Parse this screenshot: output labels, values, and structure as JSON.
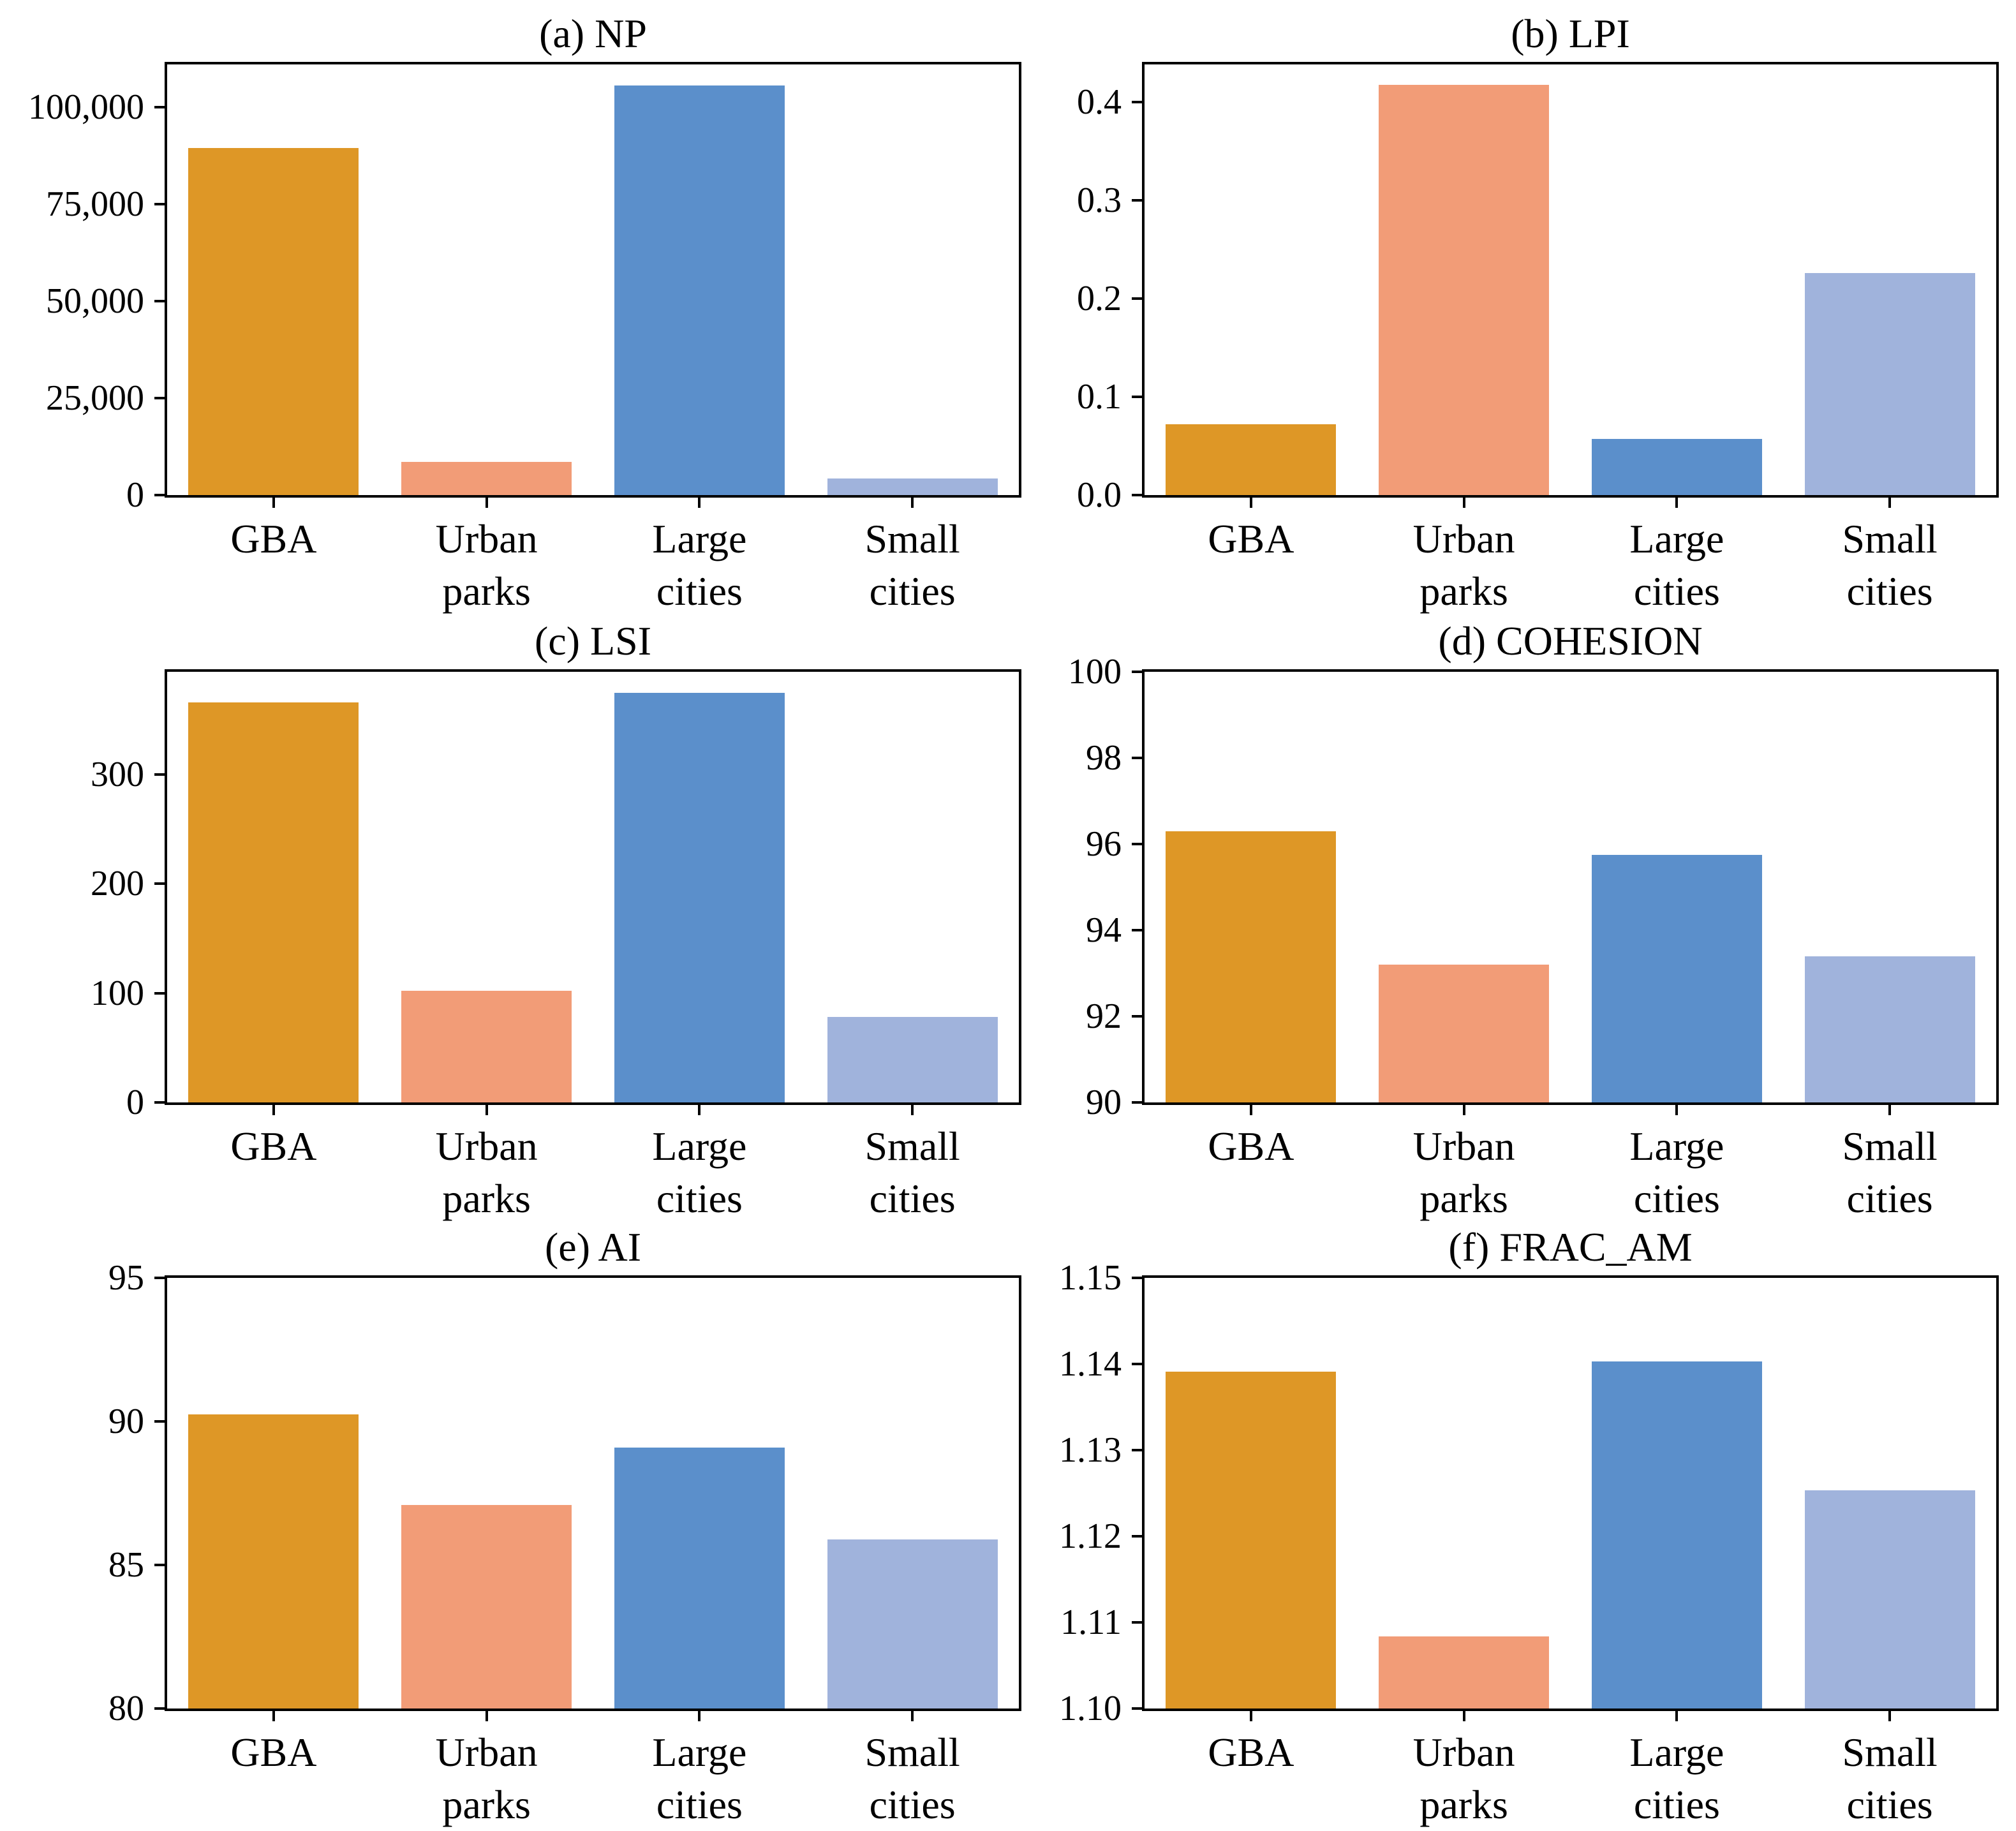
{
  "figure": {
    "rows": 3,
    "cols": 2,
    "background": "#ffffff",
    "text_color": "#000000",
    "axis_color": "#000000"
  },
  "palette": {
    "gba": "#DE9726",
    "urban_parks": "#F29C77",
    "large_cities": "#5B8FCB",
    "small_cities": "#A0B3DC"
  },
  "palette_order": [
    "#DE9726",
    "#F29C77",
    "#5B8FCB",
    "#A0B3DC"
  ],
  "category_slugs": [
    "gba",
    "urban-parks",
    "large-cities",
    "small-cities"
  ],
  "chart_data": [
    {
      "id": "a",
      "slug": "np",
      "type": "bar",
      "title": "(a) NP",
      "categories": [
        "GBA",
        "Urban\nparks",
        "Large\ncities",
        "Small\ncities"
      ],
      "values": [
        89500,
        8500,
        105500,
        4200
      ],
      "ylim": [
        0,
        111000
      ],
      "yticks": [
        {
          "value": 0,
          "label": "0"
        },
        {
          "value": 25000,
          "label": "25,000"
        },
        {
          "value": 50000,
          "label": "50,000"
        },
        {
          "value": 75000,
          "label": "75,000"
        },
        {
          "value": 100000,
          "label": "100,000"
        }
      ],
      "xlabel": "",
      "ylabel": "",
      "grid": false,
      "legend": null
    },
    {
      "id": "b",
      "slug": "lpi",
      "type": "bar",
      "title": "(b) LPI",
      "categories": [
        "GBA",
        "Urban\nparks",
        "Large\ncities",
        "Small\ncities"
      ],
      "values": [
        0.072,
        0.417,
        0.057,
        0.226
      ],
      "ylim": [
        0,
        0.438
      ],
      "yticks": [
        {
          "value": 0,
          "label": "0.0"
        },
        {
          "value": 0.1,
          "label": "0.1"
        },
        {
          "value": 0.2,
          "label": "0.2"
        },
        {
          "value": 0.3,
          "label": "0.3"
        },
        {
          "value": 0.4,
          "label": "0.4"
        }
      ],
      "xlabel": "",
      "ylabel": "",
      "grid": false,
      "legend": null
    },
    {
      "id": "c",
      "slug": "lsi",
      "type": "bar",
      "title": "(c) LSI",
      "categories": [
        "GBA",
        "Urban\nparks",
        "Large\ncities",
        "Small\ncities"
      ],
      "values": [
        366,
        102,
        375,
        78
      ],
      "ylim": [
        0,
        394
      ],
      "yticks": [
        {
          "value": 0,
          "label": "0"
        },
        {
          "value": 100,
          "label": "100"
        },
        {
          "value": 200,
          "label": "200"
        },
        {
          "value": 300,
          "label": "300"
        }
      ],
      "xlabel": "",
      "ylabel": "",
      "grid": false,
      "legend": null
    },
    {
      "id": "d",
      "slug": "cohesion",
      "type": "bar",
      "title": "(d) COHESION",
      "categories": [
        "GBA",
        "Urban\nparks",
        "Large\ncities",
        "Small\ncities"
      ],
      "values": [
        96.3,
        93.2,
        95.75,
        93.4
      ],
      "ylim": [
        90,
        100
      ],
      "yticks": [
        {
          "value": 90,
          "label": "90"
        },
        {
          "value": 92,
          "label": "92"
        },
        {
          "value": 94,
          "label": "94"
        },
        {
          "value": 96,
          "label": "96"
        },
        {
          "value": 98,
          "label": "98"
        },
        {
          "value": 100,
          "label": "100"
        }
      ],
      "xlabel": "",
      "ylabel": "",
      "grid": false,
      "legend": null
    },
    {
      "id": "e",
      "slug": "ai",
      "type": "bar",
      "title": "(e) AI",
      "categories": [
        "GBA",
        "Urban\nparks",
        "Large\ncities",
        "Small\ncities"
      ],
      "values": [
        90.25,
        87.1,
        89.1,
        85.9
      ],
      "ylim": [
        80,
        95
      ],
      "yticks": [
        {
          "value": 80,
          "label": "80"
        },
        {
          "value": 85,
          "label": "85"
        },
        {
          "value": 90,
          "label": "90"
        },
        {
          "value": 95,
          "label": "95"
        }
      ],
      "xlabel": "",
      "ylabel": "",
      "grid": false,
      "legend": null
    },
    {
      "id": "f",
      "slug": "frac-am",
      "type": "bar",
      "title": "(f) FRAC_AM",
      "categories": [
        "GBA",
        "Urban\nparks",
        "Large\ncities",
        "Small\ncities"
      ],
      "values": [
        1.1391,
        1.1084,
        1.1403,
        1.1253
      ],
      "ylim": [
        1.1,
        1.15
      ],
      "yticks": [
        {
          "value": 1.1,
          "label": "1.10"
        },
        {
          "value": 1.11,
          "label": "1.11"
        },
        {
          "value": 1.12,
          "label": "1.12"
        },
        {
          "value": 1.13,
          "label": "1.13"
        },
        {
          "value": 1.14,
          "label": "1.14"
        },
        {
          "value": 1.15,
          "label": "1.15"
        }
      ],
      "xlabel": "",
      "ylabel": "",
      "grid": false,
      "legend": null
    }
  ]
}
